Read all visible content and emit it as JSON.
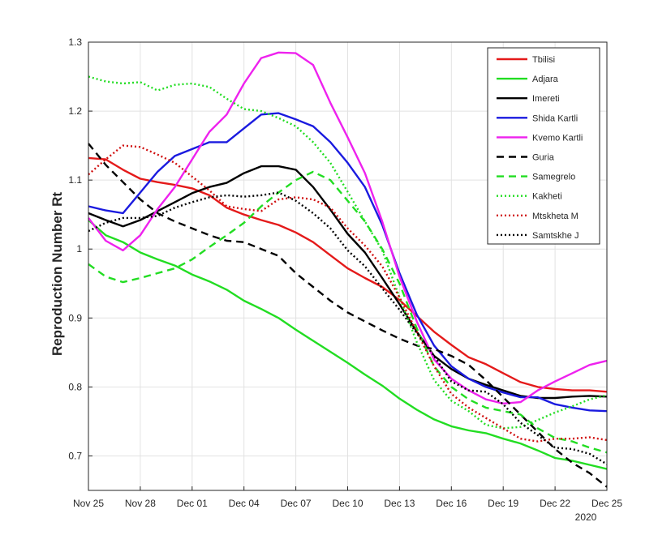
{
  "chart_data": {
    "type": "line",
    "title": "",
    "xlabel": "",
    "ylabel": "Reproduction Number Rt",
    "year_label": "2020",
    "x": [
      0,
      1,
      2,
      3,
      4,
      5,
      6,
      7,
      8,
      9,
      10,
      11,
      12,
      13,
      14,
      15,
      16,
      17,
      18,
      19,
      20,
      21,
      22,
      23,
      24,
      25,
      26,
      27,
      28,
      29,
      30
    ],
    "xlim": [
      0,
      30
    ],
    "ylim": [
      0.65,
      1.3
    ],
    "x_ticks": [
      {
        "x": 0,
        "label": "Nov 25"
      },
      {
        "x": 3,
        "label": "Nov 28"
      },
      {
        "x": 6,
        "label": "Dec 01"
      },
      {
        "x": 9,
        "label": "Dec 04"
      },
      {
        "x": 12,
        "label": "Dec 07"
      },
      {
        "x": 15,
        "label": "Dec 10"
      },
      {
        "x": 18,
        "label": "Dec 13"
      },
      {
        "x": 21,
        "label": "Dec 16"
      },
      {
        "x": 24,
        "label": "Dec 19"
      },
      {
        "x": 27,
        "label": "Dec 22"
      },
      {
        "x": 30,
        "label": "Dec 25"
      }
    ],
    "y_ticks": [
      {
        "y": 0.7,
        "label": "0.7"
      },
      {
        "y": 0.8,
        "label": "0.8"
      },
      {
        "y": 0.9,
        "label": "0.9"
      },
      {
        "y": 1.0,
        "label": "1"
      },
      {
        "y": 1.1,
        "label": "1.1"
      },
      {
        "y": 1.2,
        "label": "1.2"
      },
      {
        "y": 1.3,
        "label": "1.3"
      }
    ],
    "grid": true,
    "legend_position": "top-right",
    "series": [
      {
        "name": "Tbilisi",
        "color": "#e41a1a",
        "dash": "solid",
        "values": [
          1.132,
          1.13,
          1.115,
          1.102,
          1.097,
          1.093,
          1.088,
          1.078,
          1.06,
          1.05,
          1.042,
          1.035,
          1.024,
          1.01,
          0.991,
          0.972,
          0.958,
          0.945,
          0.926,
          0.903,
          0.88,
          0.861,
          0.843,
          0.833,
          0.82,
          0.807,
          0.8,
          0.797,
          0.795,
          0.795,
          0.793
        ]
      },
      {
        "name": "Adjara",
        "color": "#22dd22",
        "dash": "solid",
        "values": [
          1.042,
          1.02,
          1.01,
          0.995,
          0.985,
          0.976,
          0.963,
          0.953,
          0.941,
          0.925,
          0.913,
          0.9,
          0.883,
          0.867,
          0.851,
          0.835,
          0.818,
          0.802,
          0.783,
          0.767,
          0.753,
          0.743,
          0.737,
          0.733,
          0.725,
          0.718,
          0.708,
          0.697,
          0.693,
          0.687,
          0.681
        ]
      },
      {
        "name": "Imereti",
        "color": "#000000",
        "dash": "solid",
        "values": [
          1.052,
          1.042,
          1.033,
          1.042,
          1.055,
          1.068,
          1.081,
          1.09,
          1.096,
          1.11,
          1.12,
          1.12,
          1.115,
          1.09,
          1.057,
          1.022,
          0.995,
          0.958,
          0.92,
          0.88,
          0.845,
          0.826,
          0.812,
          0.803,
          0.795,
          0.787,
          0.784,
          0.784,
          0.786,
          0.787,
          0.786
        ]
      },
      {
        "name": "Shida Kartli",
        "color": "#1a1adf",
        "dash": "solid",
        "values": [
          1.062,
          1.056,
          1.052,
          1.082,
          1.112,
          1.135,
          1.145,
          1.155,
          1.155,
          1.175,
          1.195,
          1.197,
          1.188,
          1.178,
          1.155,
          1.125,
          1.09,
          1.035,
          0.965,
          0.905,
          0.86,
          0.83,
          0.812,
          0.8,
          0.792,
          0.785,
          0.785,
          0.775,
          0.77,
          0.766,
          0.765
        ]
      },
      {
        "name": "Kvemo Kartli",
        "color": "#ee22ee",
        "dash": "solid",
        "values": [
          1.045,
          1.012,
          0.998,
          1.02,
          1.058,
          1.09,
          1.13,
          1.17,
          1.195,
          1.24,
          1.277,
          1.285,
          1.284,
          1.267,
          1.212,
          1.162,
          1.11,
          1.04,
          0.96,
          0.895,
          0.84,
          0.812,
          0.795,
          0.782,
          0.776,
          0.778,
          0.795,
          0.808,
          0.82,
          0.832,
          0.838
        ]
      },
      {
        "name": "Guria",
        "color": "#000000",
        "dash": "dashed",
        "values": [
          1.153,
          1.122,
          1.097,
          1.072,
          1.052,
          1.04,
          1.03,
          1.02,
          1.012,
          1.01,
          1.0,
          0.99,
          0.965,
          0.945,
          0.925,
          0.908,
          0.895,
          0.882,
          0.87,
          0.86,
          0.855,
          0.845,
          0.832,
          0.81,
          0.785,
          0.76,
          0.735,
          0.71,
          0.69,
          0.675,
          0.655
        ]
      },
      {
        "name": "Samegrelo",
        "color": "#22dd22",
        "dash": "dashed",
        "values": [
          0.978,
          0.96,
          0.952,
          0.958,
          0.965,
          0.972,
          0.985,
          1.003,
          1.02,
          1.038,
          1.062,
          1.082,
          1.1,
          1.112,
          1.1,
          1.07,
          1.04,
          1.0,
          0.95,
          0.885,
          0.83,
          0.8,
          0.782,
          0.77,
          0.765,
          0.76,
          0.74,
          0.726,
          0.721,
          0.712,
          0.705
        ]
      },
      {
        "name": "Kakheti",
        "color": "#22dd22",
        "dash": "dotted",
        "values": [
          1.25,
          1.243,
          1.24,
          1.242,
          1.23,
          1.238,
          1.24,
          1.235,
          1.218,
          1.203,
          1.2,
          1.19,
          1.178,
          1.155,
          1.125,
          1.083,
          1.04,
          0.998,
          0.93,
          0.865,
          0.81,
          0.78,
          0.765,
          0.745,
          0.74,
          0.742,
          0.752,
          0.763,
          0.772,
          0.782,
          0.788
        ]
      },
      {
        "name": "Mtskheta M",
        "color": "#d01010",
        "dash": "dotted",
        "values": [
          1.108,
          1.13,
          1.15,
          1.148,
          1.137,
          1.125,
          1.105,
          1.085,
          1.062,
          1.058,
          1.055,
          1.072,
          1.075,
          1.072,
          1.06,
          1.03,
          1.005,
          0.975,
          0.93,
          0.88,
          0.83,
          0.79,
          0.77,
          0.755,
          0.74,
          0.725,
          0.721,
          0.725,
          0.725,
          0.727,
          0.723
        ]
      },
      {
        "name": "Samtskhe J",
        "color": "#000000",
        "dash": "dotted",
        "values": [
          1.026,
          1.038,
          1.045,
          1.045,
          1.048,
          1.06,
          1.068,
          1.075,
          1.078,
          1.076,
          1.078,
          1.082,
          1.07,
          1.052,
          1.03,
          0.998,
          0.975,
          0.943,
          0.912,
          0.878,
          0.845,
          0.808,
          0.795,
          0.793,
          0.775,
          0.748,
          0.73,
          0.712,
          0.71,
          0.703,
          0.688
        ]
      }
    ]
  }
}
